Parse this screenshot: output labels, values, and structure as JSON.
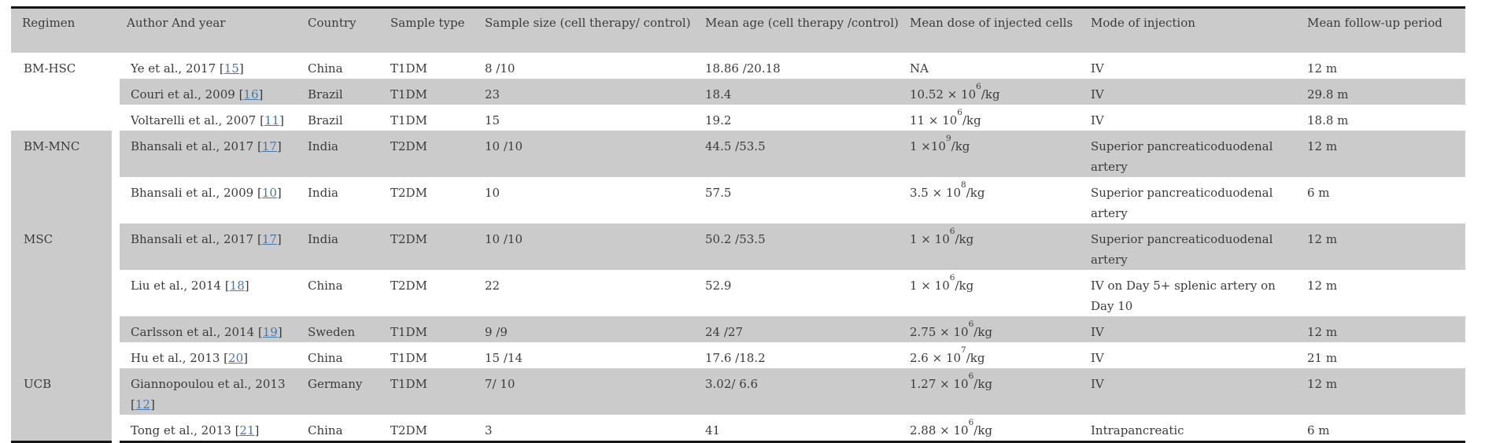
{
  "colors": {
    "row_shade": "#cbcbcb",
    "link_blue": "#4878a8",
    "text": "#3b3b3b",
    "rule_black": "#161616",
    "page_background": "#ffffff"
  },
  "table": {
    "citation_format": {
      "open": "[",
      "close": "]"
    },
    "columns": [
      {
        "key": "regimen",
        "label": "Regimen"
      },
      {
        "key": "author",
        "label": "Author And year"
      },
      {
        "key": "country",
        "label": "Country"
      },
      {
        "key": "sample_type",
        "label": "Sample type"
      },
      {
        "key": "sample_size",
        "label": "Sample size (cell therapy/ control)"
      },
      {
        "key": "mean_age",
        "label": "Mean age (cell therapy /control)"
      },
      {
        "key": "dose",
        "label": "Mean dose of injected cells"
      },
      {
        "key": "mode",
        "label": "Mode of injection"
      },
      {
        "key": "follow_up",
        "label": "Mean follow-up period"
      }
    ],
    "groups": [
      {
        "regimen": "BM-HSC",
        "studies": [
          {
            "author": "Ye et al., 2017",
            "ref": "15",
            "country": "China",
            "sample_type": "T1DM",
            "sample_size": "8 /10",
            "mean_age": "18.86 /20.18",
            "dose": {
              "base": "NA",
              "exp": "",
              "unit": ""
            },
            "mode": "IV",
            "follow_up": "12 m"
          },
          {
            "author": "Couri et al., 2009",
            "ref": "16",
            "country": "Brazil",
            "sample_type": "T1DM",
            "sample_size": "23",
            "mean_age": "18.4",
            "dose": {
              "base": "10.52 × 10",
              "exp": "6",
              "unit": "/kg"
            },
            "mode": "IV",
            "follow_up": "29.8 m"
          },
          {
            "author": "Voltarelli et al., 2007",
            "ref": "11",
            "country": "Brazil",
            "sample_type": "T1DM",
            "sample_size": "15",
            "mean_age": "19.2",
            "dose": {
              "base": "11 × 10",
              "exp": "6",
              "unit": "/kg"
            },
            "mode": "IV",
            "follow_up": "18.8 m"
          }
        ]
      },
      {
        "regimen": "BM-MNC",
        "studies": [
          {
            "author": "Bhansali et al., 2017",
            "ref": "17",
            "country": "India",
            "sample_type": "T2DM",
            "sample_size": "10 /10",
            "mean_age": "44.5 /53.5",
            "dose": {
              "base": "1 ×10",
              "exp": "9",
              "unit": "/kg"
            },
            "mode": "Superior pancreaticoduodenal artery",
            "follow_up": "12 m"
          },
          {
            "author": "Bhansali et al., 2009",
            "ref": "10",
            "country": "India",
            "sample_type": "T2DM",
            "sample_size": "10",
            "mean_age": "57.5",
            "dose": {
              "base": "3.5 × 10",
              "exp": "8",
              "unit": "/kg"
            },
            "mode": "Superior pancreaticoduodenal artery",
            "follow_up": "6 m"
          }
        ]
      },
      {
        "regimen": "MSC",
        "studies": [
          {
            "author": "Bhansali et al., 2017",
            "ref": "17",
            "country": "India",
            "sample_type": "T2DM",
            "sample_size": "10 /10",
            "mean_age": "50.2 /53.5",
            "dose": {
              "base": "1 × 10",
              "exp": "6",
              "unit": "/kg"
            },
            "mode": "Superior pancreaticoduodenal artery",
            "follow_up": "12 m"
          },
          {
            "author": "Liu et al., 2014",
            "ref": "18",
            "country": "China",
            "sample_type": "T2DM",
            "sample_size": "22",
            "mean_age": "52.9",
            "dose": {
              "base": "1 × 10",
              "exp": "6",
              "unit": "/kg"
            },
            "mode": "IV on Day 5+ splenic artery on Day 10",
            "follow_up": "12 m"
          },
          {
            "author": "Carlsson et al., 2014",
            "ref": "19",
            "country": "Sweden",
            "sample_type": "T1DM",
            "sample_size": "9 /9",
            "mean_age": "24 /27",
            "dose": {
              "base": "2.75 × 10",
              "exp": "6",
              "unit": "/kg"
            },
            "mode": "IV",
            "follow_up": "12 m"
          },
          {
            "author": "Hu et al., 2013",
            "ref": "20",
            "country": "China",
            "sample_type": "T1DM",
            "sample_size": "15 /14",
            "mean_age": "17.6 /18.2",
            "dose": {
              "base": "2.6 × 10",
              "exp": "7",
              "unit": "/kg"
            },
            "mode": "IV",
            "follow_up": "21 m"
          }
        ]
      },
      {
        "regimen": "UCB",
        "studies": [
          {
            "author": "Giannopoulou et al., 2013",
            "ref": "12",
            "country": "Germany",
            "sample_type": "T1DM",
            "sample_size": "7/ 10",
            "mean_age": "3.02/ 6.6",
            "dose": {
              "base": "1.27 × 10",
              "exp": "6",
              "unit": "/kg"
            },
            "mode": "IV",
            "follow_up": "12 m"
          },
          {
            "author": "Tong et al., 2013",
            "ref": "21",
            "country": "China",
            "sample_type": "T2DM",
            "sample_size": "3",
            "mean_age": "41",
            "dose": {
              "base": "2.88 × 10",
              "exp": "6",
              "unit": "/kg"
            },
            "mode": "Intrapancreatic",
            "follow_up": "6 m"
          }
        ]
      }
    ]
  }
}
